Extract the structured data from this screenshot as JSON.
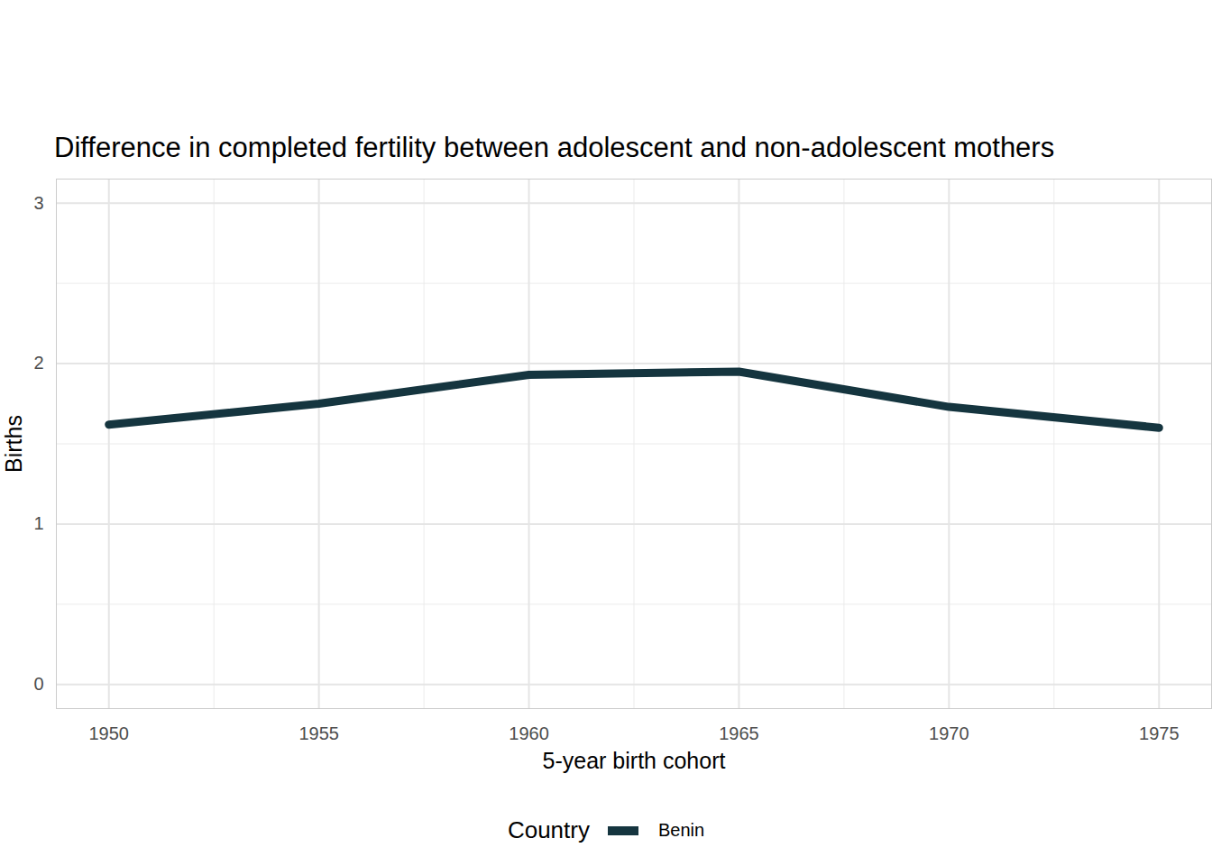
{
  "chart_data": {
    "type": "line",
    "title": "Difference in completed fertility between adolescent and non-adolescent mothers",
    "x_label": "5-year birth cohort",
    "y_label": "Births",
    "x": [
      1950,
      1955,
      1960,
      1965,
      1970,
      1975
    ],
    "series": [
      {
        "name": "Benin",
        "color": "#15353f",
        "values": [
          1.62,
          1.75,
          1.93,
          1.95,
          1.73,
          1.6
        ]
      }
    ],
    "xlim": [
      1948.75,
      1976.25
    ],
    "ylim": [
      -0.15,
      3.15
    ],
    "xticks": [
      1950,
      1955,
      1960,
      1965,
      1970,
      1975
    ],
    "yticks": [
      0,
      1,
      2,
      3
    ],
    "grid": true,
    "legend": "bottom",
    "legend_title": "Country"
  }
}
